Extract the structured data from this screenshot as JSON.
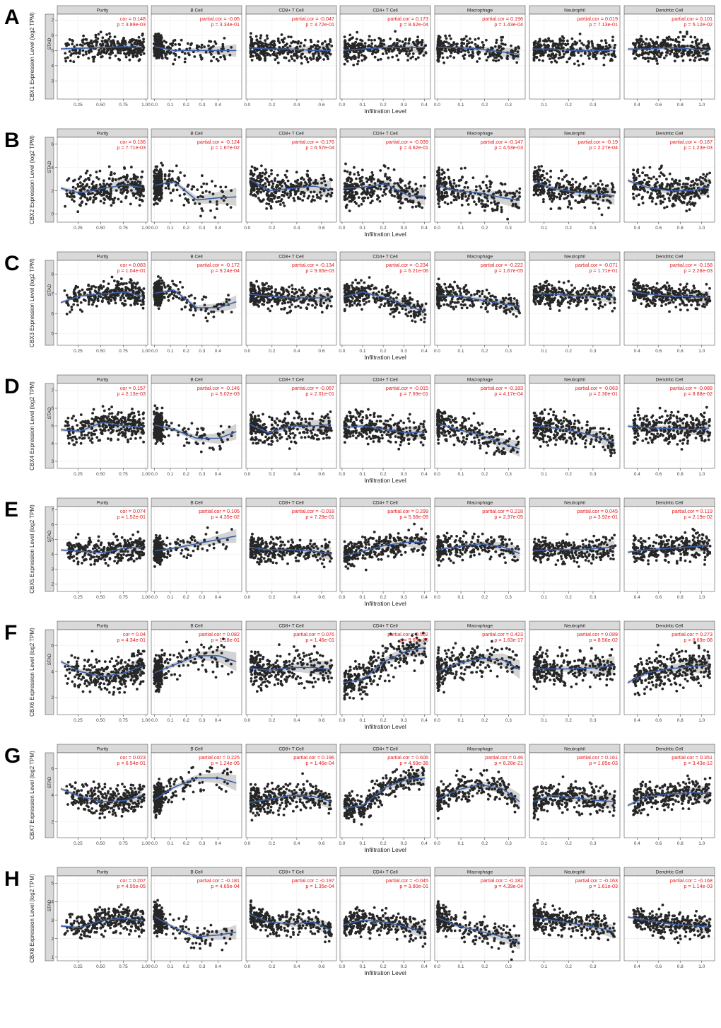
{
  "figure": {
    "y_axis_suffix": "Expression Level (log2 TPM)",
    "x_axis_label": "Infiltration Level",
    "cancer_label": "STAD"
  },
  "colors": {
    "points": "#262626",
    "fit_line": "#3a5fa8",
    "ci_band": "#c8c8c8",
    "stat_text": "#e41a1c",
    "strip": "#d9d9d9",
    "grid": "#ececec"
  },
  "chart_data": {
    "type": "scatter",
    "title": "",
    "xlabel": "Infiltration Level",
    "columns": [
      {
        "name": "Purity",
        "xlim": [
          0.02,
          1.02
        ],
        "ticks": [
          0.25,
          0.5,
          0.75,
          1.0
        ],
        "tick_labels": [
          "0.25",
          "0.50",
          "0.75",
          "1.00"
        ]
      },
      {
        "name": "B Cell",
        "xlim": [
          -0.02,
          0.55
        ],
        "ticks": [
          0.0,
          0.1,
          0.2,
          0.3,
          0.4
        ],
        "tick_labels": [
          "0.0",
          "0.1",
          "0.2",
          "0.3",
          "0.4"
        ]
      },
      {
        "name": "CD8+ T Cell",
        "xlim": [
          -0.01,
          0.72
        ],
        "ticks": [
          0.0,
          0.2,
          0.4,
          0.6
        ],
        "tick_labels": [
          "0.0",
          "0.2",
          "0.4",
          "0.6"
        ]
      },
      {
        "name": "CD4+ T Cell",
        "xlim": [
          -0.01,
          0.43
        ],
        "ticks": [
          0.0,
          0.1,
          0.2,
          0.3,
          0.4
        ],
        "tick_labels": [
          "0.0",
          "0.1",
          "0.2",
          "0.3",
          "0.4"
        ]
      },
      {
        "name": "Macrophage",
        "xlim": [
          -0.01,
          0.37
        ],
        "ticks": [
          0.0,
          0.1,
          0.2,
          0.3
        ],
        "tick_labels": [
          "0.0",
          "0.1",
          "0.2",
          "0.3"
        ]
      },
      {
        "name": "Neutrophil",
        "xlim": [
          0.04,
          0.41
        ],
        "ticks": [
          0.1,
          0.2,
          0.3
        ],
        "tick_labels": [
          "0.1",
          "0.2",
          "0.3"
        ]
      },
      {
        "name": "Dendritic Cell",
        "xlim": [
          0.28,
          1.12
        ],
        "ticks": [
          0.4,
          0.6,
          0.8,
          1.0
        ],
        "tick_labels": [
          "0.4",
          "0.6",
          "0.8",
          "1.0"
        ]
      }
    ],
    "rows": [
      {
        "panel": "A",
        "gene": "CBX1",
        "ylabel": "CBX1 Expression Level (log2 TPM)",
        "ylim": [
          1.8,
          7.4
        ],
        "yticks": [
          3,
          4,
          5,
          6,
          7
        ],
        "center": 5.1,
        "spread": 0.7,
        "fit": [
          [
            5.1,
            5.15,
            5.2,
            5.25,
            5.2
          ],
          [
            5.3,
            5.0,
            5.0,
            5.0,
            5.0
          ],
          [
            5.2,
            5.1,
            5.1,
            5.0,
            5.0
          ],
          [
            5.0,
            5.1,
            5.2,
            5.2,
            5.2
          ],
          [
            5.2,
            5.2,
            5.1,
            4.9,
            4.7
          ],
          [
            5.1,
            5.1,
            5.0,
            5.0,
            5.0
          ],
          [
            5.1,
            5.1,
            5.2,
            5.1,
            5.0
          ]
        ],
        "stats": [
          [
            "cor = 0.148",
            "p = 3.89e-03"
          ],
          [
            "partial.cor = -0.05",
            "p = 3.34e-01"
          ],
          [
            "partial.cor = -0.047",
            "p = 3.72e-01"
          ],
          [
            "partial.cor = 0.173",
            "p = 8.62e-04"
          ],
          [
            "partial.cor = 0.196",
            "p = 1.43e-04"
          ],
          [
            "partial.cor = 0.019",
            "p = 7.13e-01"
          ],
          [
            "partial.cor = 0.101",
            "p = 5.12e-02"
          ]
        ]
      },
      {
        "panel": "B",
        "gene": "CBX2",
        "ylabel": "CBX2 Expression Level (log2 TPM)",
        "ylim": [
          -0.7,
          6.6
        ],
        "yticks": [
          0,
          2,
          4,
          6
        ],
        "center": 2.1,
        "spread": 1.3,
        "fit": [
          [
            2.3,
            1.8,
            2.2,
            2.5,
            2.2
          ],
          [
            2.4,
            2.8,
            1.2,
            1.4,
            1.5
          ],
          [
            3.2,
            2.0,
            2.2,
            2.4,
            2.0
          ],
          [
            2.2,
            2.3,
            2.6,
            1.6,
            1.5
          ],
          [
            2.5,
            2.0,
            1.8,
            1.4,
            1.1
          ],
          [
            3.0,
            2.2,
            1.9,
            1.7,
            1.5
          ],
          [
            3.0,
            2.3,
            2.0,
            2.0,
            2.5
          ]
        ],
        "stats": [
          [
            "cor = 0.136",
            "p = 7.71e-03"
          ],
          [
            "partial.cor = -0.124",
            "p = 1.67e-02"
          ],
          [
            "partial.cor = -0.176",
            "p = 6.57e-04"
          ],
          [
            "partial.cor = -0.039",
            "p = 4.62e-01"
          ],
          [
            "partial.cor = -0.147",
            "p = 4.53e-03"
          ],
          [
            "partial.cor = -0.19",
            "p = 2.27e-04"
          ],
          [
            "partial.cor = -0.167",
            "p = 1.23e-03"
          ]
        ]
      },
      {
        "panel": "C",
        "gene": "CBX3",
        "ylabel": "CBX3 Expression Level (log2 TPM)",
        "ylim": [
          4.4,
          8.7
        ],
        "yticks": [
          5,
          6,
          7,
          8
        ],
        "center": 6.9,
        "spread": 0.55,
        "fit": [
          [
            6.5,
            6.9,
            7.0,
            7.1,
            6.8
          ],
          [
            7.0,
            7.2,
            6.3,
            6.3,
            6.7
          ],
          [
            7.0,
            6.9,
            6.8,
            6.8,
            6.8
          ],
          [
            6.8,
            7.1,
            6.8,
            6.4,
            6.0
          ],
          [
            6.9,
            6.9,
            6.7,
            6.5,
            6.3
          ],
          [
            7.0,
            7.0,
            6.9,
            6.9,
            6.8
          ],
          [
            7.2,
            7.0,
            6.9,
            6.85,
            6.8
          ]
        ],
        "stats": [
          [
            "cor = 0.083",
            "p = 1.04e-01"
          ],
          [
            "partial.cor = -0.172",
            "p = 9.24e-04"
          ],
          [
            "partial.cor = -0.134",
            "p = 9.65e-03"
          ],
          [
            "partial.cor = -0.234",
            "p = 6.21e-06"
          ],
          [
            "partial.cor = -0.222",
            "p = 1.67e-05"
          ],
          [
            "partial.cor = -0.071",
            "p = 1.71e-01"
          ],
          [
            "partial.cor = -0.158",
            "p = 2.28e-03"
          ]
        ]
      },
      {
        "panel": "D",
        "gene": "CBX4",
        "ylabel": "CBX4 Expression Level (log2 TPM)",
        "ylim": [
          2.6,
          7.4
        ],
        "yticks": [
          3,
          4,
          5,
          6,
          7
        ],
        "center": 4.8,
        "spread": 0.75,
        "fit": [
          [
            4.8,
            4.7,
            5.2,
            5.0,
            4.9
          ],
          [
            5.1,
            4.8,
            4.3,
            4.3,
            4.8
          ],
          [
            5.2,
            4.6,
            5.0,
            5.0,
            5.1
          ],
          [
            4.9,
            5.0,
            4.8,
            4.6,
            4.7
          ],
          [
            5.2,
            4.8,
            4.5,
            4.0,
            3.6
          ],
          [
            5.0,
            4.9,
            4.7,
            4.4,
            3.9
          ],
          [
            5.0,
            4.9,
            4.85,
            4.8,
            4.9
          ]
        ],
        "stats": [
          [
            "cor = 0.157",
            "p = 2.13e-03"
          ],
          [
            "partial.cor = -0.146",
            "p = 5.02e-03"
          ],
          [
            "partial.cor = -0.067",
            "p = 2.01e-01"
          ],
          [
            "partial.cor = -0.015",
            "p = 7.69e-01"
          ],
          [
            "partial.cor = -0.183",
            "p = 4.17e-04"
          ],
          [
            "partial.cor = -0.063",
            "p = 2.30e-01"
          ],
          [
            "partial.cor = -0.088",
            "p = 8.88e-02"
          ]
        ]
      },
      {
        "panel": "E",
        "gene": "CBX5",
        "ylabel": "CBX5 Expression Level (log2 TPM)",
        "ylim": [
          1.5,
          7.2
        ],
        "yticks": [
          2,
          3,
          4,
          5,
          6,
          7
        ],
        "center": 4.3,
        "spread": 0.75,
        "fit": [
          [
            4.3,
            4.2,
            4.1,
            4.4,
            4.5
          ],
          [
            4.2,
            4.4,
            4.7,
            5.0,
            5.3
          ],
          [
            4.5,
            4.3,
            4.3,
            4.2,
            4.0
          ],
          [
            3.8,
            4.2,
            4.6,
            4.8,
            4.8
          ],
          [
            4.3,
            4.5,
            4.7,
            4.5,
            3.9
          ],
          [
            4.2,
            4.3,
            4.3,
            4.4,
            4.5
          ],
          [
            4.1,
            4.3,
            4.4,
            4.5,
            4.6
          ]
        ],
        "stats": [
          [
            "cor = 0.074",
            "p = 1.52e-01"
          ],
          [
            "partial.cor = 0.105",
            "p = 4.35e-02"
          ],
          [
            "partial.cor = -0.018",
            "p = 7.29e-01"
          ],
          [
            "partial.cor = 0.299",
            "p = 5.58e-09"
          ],
          [
            "partial.cor = 0.218",
            "p = 2.37e-05"
          ],
          [
            "partial.cor = 0.045",
            "p = 3.92e-01"
          ],
          [
            "partial.cor = 0.119",
            "p = 2.19e-02"
          ]
        ]
      },
      {
        "panel": "F",
        "gene": "CBX6",
        "ylabel": "CBX6 Expression Level (log2 TPM)",
        "ylim": [
          0.7,
          7.2
        ],
        "yticks": [
          2,
          4,
          6
        ],
        "center": 4.0,
        "spread": 1.2,
        "fit": [
          [
            4.9,
            4.0,
            3.6,
            3.9,
            4.6
          ],
          [
            3.8,
            4.5,
            5.2,
            5.2,
            4.6
          ],
          [
            4.3,
            4.1,
            4.3,
            4.3,
            4.1
          ],
          [
            3.1,
            3.4,
            4.8,
            5.6,
            5.9
          ],
          [
            3.9,
            4.6,
            5.0,
            4.9,
            3.9
          ],
          [
            4.2,
            4.2,
            4.2,
            4.3,
            4.5
          ],
          [
            3.0,
            3.9,
            4.2,
            4.4,
            4.5
          ]
        ],
        "stats": [
          [
            "cor = 0.04",
            "p = 4.34e-01"
          ],
          [
            "partial.cor = 0.082",
            "p = 1.18e-01"
          ],
          [
            "partial.cor = 0.076",
            "p = 1.46e-01"
          ],
          [
            "partial.cor = 0.502",
            "p = 9.69e-25"
          ],
          [
            "partial.cor = 0.423",
            "p = 1.63e-17"
          ],
          [
            "partial.cor = 0.089",
            "p = 8.56e-02"
          ],
          [
            "partial.cor = 0.273",
            "p = 8.69e-08"
          ]
        ]
      },
      {
        "panel": "G",
        "gene": "CBX7",
        "ylabel": "CBX7 Expression Level (log2 TPM)",
        "ylim": [
          0.8,
          7.2
        ],
        "yticks": [
          2,
          4,
          6
        ],
        "center": 3.8,
        "spread": 1.0,
        "fit": [
          [
            4.6,
            3.9,
            3.5,
            3.6,
            4.1
          ],
          [
            3.5,
            4.6,
            5.3,
            5.3,
            4.8
          ],
          [
            3.4,
            3.7,
            4.0,
            3.9,
            3.4
          ],
          [
            3.0,
            3.2,
            4.6,
            5.2,
            5.3
          ],
          [
            3.6,
            4.4,
            4.8,
            4.5,
            3.2
          ],
          [
            3.4,
            4.0,
            3.8,
            3.6,
            3.5
          ],
          [
            3.1,
            3.9,
            4.1,
            4.2,
            4.1
          ]
        ],
        "stats": [
          [
            "cor = 0.023",
            "p = 6.54e-01"
          ],
          [
            "partial.cor = 0.225",
            "p = 1.24e-05"
          ],
          [
            "partial.cor = 0.196",
            "p = 1.46e-04"
          ],
          [
            "partial.cor = 0.606",
            "p = 4.69e-38"
          ],
          [
            "partial.cor = 0.46",
            "p = 8.28e-21"
          ],
          [
            "partial.cor = 0.161",
            "p = 1.85e-03"
          ],
          [
            "partial.cor = 0.351",
            "p = 3.43e-12"
          ]
        ]
      },
      {
        "panel": "H",
        "gene": "CBX8",
        "ylabel": "CBX8 Expression Level (log2 TPM)",
        "ylim": [
          0.8,
          5.4
        ],
        "yticks": [
          1,
          2,
          3,
          4,
          5
        ],
        "center": 2.8,
        "spread": 0.65,
        "fit": [
          [
            2.7,
            2.6,
            3.0,
            3.1,
            2.9
          ],
          [
            3.3,
            2.6,
            2.1,
            2.2,
            2.4
          ],
          [
            3.4,
            2.9,
            2.8,
            2.9,
            2.3
          ],
          [
            2.7,
            3.0,
            2.9,
            2.6,
            2.3
          ],
          [
            3.2,
            2.7,
            2.4,
            2.1,
            1.7
          ],
          [
            3.2,
            3.0,
            2.8,
            2.6,
            2.3
          ],
          [
            3.2,
            3.0,
            2.8,
            2.7,
            2.6
          ]
        ],
        "stats": [
          [
            "cor = 0.207",
            "p = 4.95e-05"
          ],
          [
            "partial.cor = -0.181",
            "p = 4.65e-04"
          ],
          [
            "partial.cor = -0.197",
            "p = 1.35e-04"
          ],
          [
            "partial.cor = -0.045",
            "p = 3.90e-01"
          ],
          [
            "partial.cor = -0.182",
            "p = 4.39e-04"
          ],
          [
            "partial.cor = -0.163",
            "p = 1.61e-03"
          ],
          [
            "partial.cor = -0.168",
            "p = 1.14e-03"
          ]
        ]
      }
    ]
  }
}
